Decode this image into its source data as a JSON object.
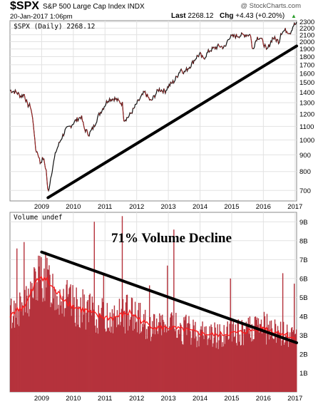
{
  "header": {
    "symbol": "$SPX",
    "name": "S&P 500 Large Cap Index  INDX",
    "date": "20-Jan-2017 1:06pm",
    "source": "@ StockCharts.com",
    "last_label": "Last",
    "last_value": "2268.12",
    "chg_label": "Chg",
    "chg_value": "+4.43 (+0.20%)"
  },
  "colors": {
    "price": "#111111",
    "price_down": "#b22222",
    "volume_fill": "#b5323c",
    "volume_ma": "#ff1a1a",
    "trendline": "#000000",
    "grid": "#e2e2e2"
  },
  "chart_data": [
    {
      "type": "line",
      "legend": "$SPX (Daily) 2268.12",
      "x_ticks": [
        "2009",
        "2010",
        "2011",
        "2012",
        "2013",
        "2014",
        "2015",
        "2016",
        "2017"
      ],
      "y_ticks": [
        700,
        800,
        900,
        1000,
        1100,
        1200,
        1300,
        1400,
        1500,
        1600,
        1700,
        1800,
        1900,
        2000,
        2100,
        2200,
        2300
      ],
      "ylim": [
        650,
        2320
      ],
      "log_scale": true,
      "xlim": [
        2008.0,
        2017.05
      ],
      "series": [
        {
          "x": [
            2008.0,
            2008.2,
            2008.35,
            2008.45,
            2008.55,
            2008.65,
            2008.75,
            2008.8,
            2008.9,
            2008.95,
            2009.05,
            2009.15,
            2009.2,
            2009.3,
            2009.45,
            2009.6,
            2009.75,
            2009.9,
            2010.05,
            2010.25,
            2010.35,
            2010.5,
            2010.65,
            2010.8,
            2011.0,
            2011.1,
            2011.3,
            2011.55,
            2011.6,
            2011.75,
            2011.9,
            2012.0,
            2012.25,
            2012.45,
            2012.7,
            2012.9,
            2013.0,
            2013.2,
            2013.4,
            2013.5,
            2013.7,
            2013.9,
            2014.0,
            2014.1,
            2014.3,
            2014.6,
            2014.8,
            2014.9,
            2015.1,
            2015.4,
            2015.6,
            2015.65,
            2015.8,
            2015.9,
            2016.05,
            2016.1,
            2016.3,
            2016.5,
            2016.55,
            2016.7,
            2016.85,
            2016.95,
            2017.05
          ],
          "y": [
            1420,
            1400,
            1360,
            1380,
            1280,
            1270,
            1100,
            940,
            900,
            850,
            880,
            800,
            680,
            780,
            920,
            1000,
            1070,
            1100,
            1140,
            1180,
            1080,
            1040,
            1100,
            1190,
            1280,
            1330,
            1340,
            1290,
            1150,
            1180,
            1240,
            1290,
            1400,
            1310,
            1430,
            1410,
            1460,
            1520,
            1650,
            1610,
            1690,
            1800,
            1830,
            1770,
            1880,
            1940,
            1920,
            2060,
            2080,
            2100,
            2100,
            1880,
            2060,
            2060,
            1940,
            1870,
            2060,
            2000,
            2130,
            2170,
            2130,
            2250,
            2268
          ]
        }
      ],
      "trendline": {
        "x": [
          2009.2,
          2017.05
        ],
        "y": [
          665,
          1940
        ]
      }
    },
    {
      "type": "bar",
      "legend": "Volume undef",
      "annotation": "71% Volume Decline",
      "x_ticks": [
        "2009",
        "2010",
        "2011",
        "2012",
        "2013",
        "2014",
        "2015",
        "2016",
        "2017"
      ],
      "y_ticks": [
        "1B",
        "2B",
        "3B",
        "4B",
        "5B",
        "6B",
        "7B",
        "8B",
        "9B"
      ],
      "ylim_billions": [
        0,
        9.5
      ],
      "xlim": [
        2008.0,
        2017.05
      ],
      "volume_ma": {
        "x": [
          2008.0,
          2008.5,
          2008.8,
          2009.0,
          2009.2,
          2009.5,
          2009.8,
          2010.0,
          2010.4,
          2010.8,
          2011.2,
          2011.6,
          2011.8,
          2012.2,
          2012.6,
          2013.0,
          2013.5,
          2014.0,
          2014.5,
          2015.0,
          2015.5,
          2015.7,
          2016.0,
          2016.3,
          2016.6,
          2017.0
        ],
        "y": [
          4.1,
          4.6,
          5.7,
          6.2,
          5.8,
          5.2,
          4.8,
          4.5,
          4.3,
          4.0,
          3.9,
          4.1,
          4.2,
          3.7,
          3.4,
          3.4,
          3.3,
          3.1,
          3.0,
          3.1,
          3.2,
          3.3,
          3.4,
          3.2,
          3.1,
          2.8
        ]
      },
      "trendline": {
        "x": [
          2009.0,
          2017.05
        ],
        "y": [
          7.4,
          2.6
        ]
      }
    }
  ]
}
